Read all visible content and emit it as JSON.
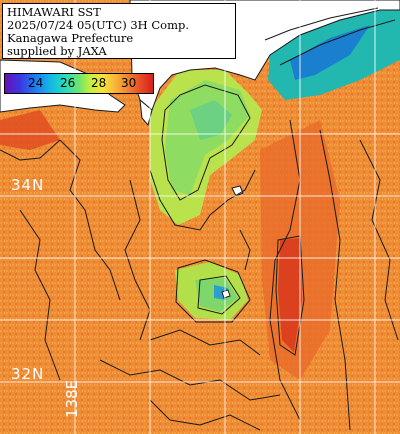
{
  "header": {
    "line1": "HIMAWARI SST",
    "line2": "2025/07/24 05(UTC) 3H Comp.",
    "line3": "Kanagawa Prefecture",
    "line4": "supplied by JAXA"
  },
  "colorbar": {
    "ticks": [
      "24",
      "26",
      "28",
      "30"
    ],
    "unit": ""
  },
  "grid": {
    "lat_labels": [
      "34N",
      "32N"
    ],
    "lon_labels": [
      "138E"
    ]
  },
  "colors": {
    "land": "#ffffff",
    "ocean_warm": "#f08a34",
    "ocean_hot": "#e2401e",
    "ocean_cool": "#8fdc62",
    "ocean_coldest": "#2ba0c8",
    "contour": "#1a1a1a",
    "graticule": "#ffffff"
  }
}
